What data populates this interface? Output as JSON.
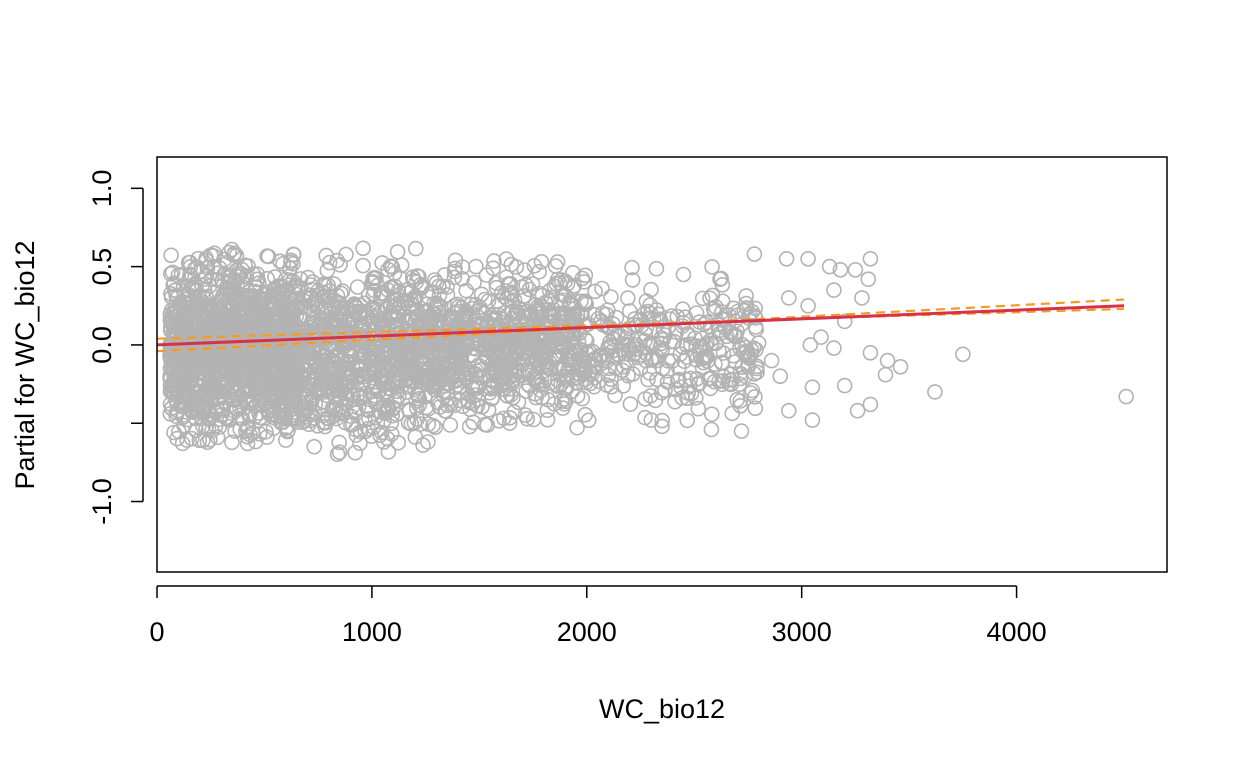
{
  "chart_data": {
    "type": "scatter",
    "title": "",
    "xlabel": "WC_bio12",
    "ylabel": "Partial for WC_bio12",
    "xlim": [
      0,
      4700
    ],
    "ylim": [
      -1.45,
      1.2
    ],
    "x_ticks": [
      0,
      1000,
      2000,
      3000,
      4000
    ],
    "x_tick_labels": [
      "0",
      "1000",
      "2000",
      "3000",
      "4000"
    ],
    "y_ticks": [
      -1.0,
      -0.5,
      0.0,
      0.5,
      1.0
    ],
    "y_tick_labels": [
      "-1.0",
      "",
      "0.0",
      "0.5",
      "1.0"
    ],
    "grid": false,
    "colors": {
      "points": "#b3b3b3",
      "fit_line": "#d6334a",
      "confidence_band": "#f59a23",
      "frame": "#000000"
    },
    "fit": {
      "name": "fit",
      "x": [
        0,
        4500
      ],
      "y": [
        0.0,
        0.25
      ]
    },
    "band_upper": {
      "x": [
        0,
        4500
      ],
      "y": [
        -0.04,
        0.29
      ]
    },
    "band_lower": {
      "x": [
        0,
        4500
      ],
      "y": [
        0.04,
        0.23
      ]
    },
    "point_clusters": [
      {
        "x": [
          60,
          650
        ],
        "y": [
          -0.65,
          0.62
        ],
        "n": 1400
      },
      {
        "x": [
          600,
          1300
        ],
        "y": [
          -0.7,
          0.62
        ],
        "n": 900
      },
      {
        "x": [
          1300,
          2000
        ],
        "y": [
          -0.55,
          0.55
        ],
        "n": 700
      },
      {
        "x": [
          2000,
          2800
        ],
        "y": [
          -0.5,
          0.5
        ],
        "n": 300
      }
    ],
    "points": [
      {
        "x": 2930,
        "y": 0.55
      },
      {
        "x": 3030,
        "y": 0.55
      },
      {
        "x": 3130,
        "y": 0.5
      },
      {
        "x": 3180,
        "y": 0.48
      },
      {
        "x": 3320,
        "y": 0.55
      },
      {
        "x": 3250,
        "y": 0.48
      },
      {
        "x": 3310,
        "y": 0.42
      },
      {
        "x": 3150,
        "y": 0.35
      },
      {
        "x": 3030,
        "y": 0.25
      },
      {
        "x": 2940,
        "y": 0.3
      },
      {
        "x": 3280,
        "y": 0.3
      },
      {
        "x": 3200,
        "y": 0.15
      },
      {
        "x": 3040,
        "y": 0.0
      },
      {
        "x": 3090,
        "y": 0.05
      },
      {
        "x": 3150,
        "y": -0.02
      },
      {
        "x": 3320,
        "y": -0.05
      },
      {
        "x": 2860,
        "y": -0.1
      },
      {
        "x": 2900,
        "y": -0.2
      },
      {
        "x": 3050,
        "y": -0.27
      },
      {
        "x": 3200,
        "y": -0.26
      },
      {
        "x": 3400,
        "y": -0.1
      },
      {
        "x": 3460,
        "y": -0.14
      },
      {
        "x": 3390,
        "y": -0.19
      },
      {
        "x": 3750,
        "y": -0.06
      },
      {
        "x": 3620,
        "y": -0.3
      },
      {
        "x": 3320,
        "y": -0.38
      },
      {
        "x": 3260,
        "y": -0.42
      },
      {
        "x": 3050,
        "y": -0.48
      },
      {
        "x": 2940,
        "y": -0.42
      },
      {
        "x": 2700,
        "y": -0.35
      },
      {
        "x": 2720,
        "y": -0.55
      },
      {
        "x": 2580,
        "y": -0.54
      },
      {
        "x": 2350,
        "y": -0.52
      },
      {
        "x": 2300,
        "y": -0.48
      },
      {
        "x": 4510,
        "y": -0.33
      },
      {
        "x": 2780,
        "y": 0.58
      },
      {
        "x": 2450,
        "y": 0.45
      },
      {
        "x": 2620,
        "y": 0.42
      }
    ]
  }
}
